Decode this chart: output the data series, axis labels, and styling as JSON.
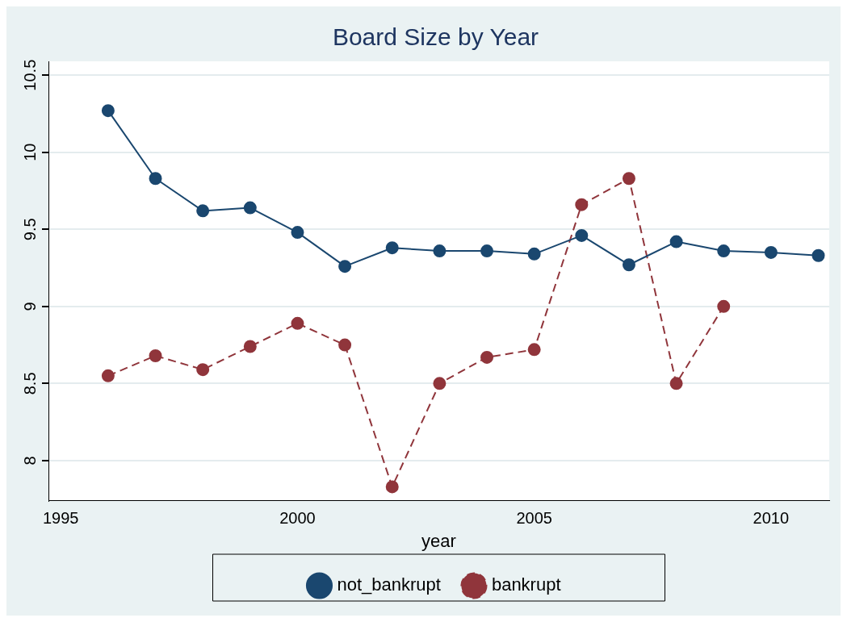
{
  "chart_data": {
    "type": "line",
    "title": "Board Size by Year",
    "xlabel": "year",
    "x": [
      1996,
      1997,
      1998,
      1999,
      2000,
      2001,
      2002,
      2003,
      2004,
      2005,
      2006,
      2007,
      2008,
      2009,
      2010,
      2011
    ],
    "series": [
      {
        "name": "not_bankrupt",
        "color": "#1a476f",
        "line_style": "solid",
        "values": [
          10.27,
          9.83,
          9.62,
          9.64,
          9.48,
          9.26,
          9.38,
          9.36,
          9.36,
          9.34,
          9.46,
          9.27,
          9.42,
          9.36,
          9.35,
          9.33
        ]
      },
      {
        "name": "bankrupt",
        "color": "#90353b",
        "line_style": "dashed",
        "values": [
          8.55,
          8.68,
          8.59,
          8.74,
          8.89,
          8.75,
          7.83,
          8.5,
          8.67,
          8.72,
          9.66,
          9.83,
          8.5,
          9.0,
          null,
          null
        ]
      }
    ],
    "xlim": [
      1994.74,
      2011.23
    ],
    "xticks": [
      1995,
      2000,
      2005,
      2010
    ],
    "ylim": [
      7.74,
      10.59
    ],
    "yticks": [
      8,
      8.5,
      9,
      9.5,
      10,
      10.5
    ],
    "grid": "y",
    "legend": "bottom",
    "marker": "circle"
  }
}
